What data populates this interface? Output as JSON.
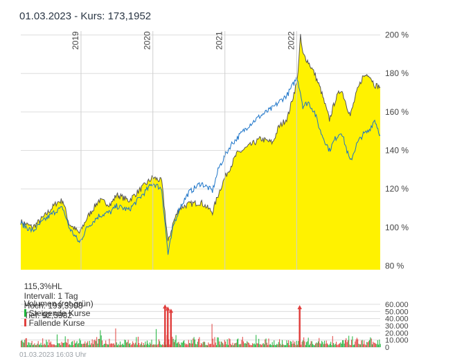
{
  "header": {
    "date": "01.03.2023",
    "price_text": " - Kurs: 173,1952"
  },
  "info": {
    "level": "115,3%HL",
    "interval": "Intervall: 1 Tag",
    "high": "Hoch: 199,3908",
    "low": "Tief: 92,5982"
  },
  "legend": {
    "title": "Volumen (rot-grün)",
    "rising": "Steigende Kurse",
    "falling": "Fallende Kurse",
    "rising_color": "#1db33b",
    "falling_color": "#e0403e"
  },
  "footer": {
    "timestamp": "01.03.2023 16:03 Uhr"
  },
  "colors": {
    "area": "#fff200",
    "area_line": "#555555",
    "benchmark": "#1a73c8",
    "grid": "#dddddd",
    "accent_text": "#2a3644"
  },
  "chart_data": [
    {
      "type": "area",
      "x_tick_labels": [
        "2019",
        "2020",
        "2021",
        "2022"
      ],
      "y_tick_labels": [
        "200 %",
        "180 %",
        "160 %",
        "140 %",
        "120 %",
        "100 %",
        "80 %"
      ],
      "ylim": [
        78,
        202
      ],
      "xlim": [
        "2018-03-01",
        "2023-03-01"
      ],
      "grid": true,
      "series": [
        {
          "x": [
            "2018-03-01",
            "2018-05-01",
            "2018-07-01",
            "2018-09-01",
            "2018-10-01",
            "2018-11-01",
            "2018-12-24",
            "2019-02-01",
            "2019-04-01",
            "2019-06-01",
            "2019-07-01",
            "2019-09-01",
            "2019-11-01",
            "2020-01-01",
            "2020-02-15",
            "2020-03-18",
            "2020-04-15",
            "2020-05-15",
            "2020-07-01",
            "2020-09-01",
            "2020-10-30",
            "2020-12-01",
            "2021-01-01",
            "2021-02-01",
            "2021-03-01",
            "2021-05-01",
            "2021-07-01",
            "2021-09-01",
            "2021-10-01",
            "2021-11-15",
            "2022-01-03",
            "2022-01-20",
            "2022-02-01",
            "2022-03-01",
            "2022-04-01",
            "2022-05-01",
            "2022-06-16",
            "2022-07-15",
            "2022-08-15",
            "2022-09-30",
            "2022-11-01",
            "2022-12-01",
            "2023-01-01",
            "2023-02-01",
            "2023-03-01"
          ],
          "values": [
            103,
            100,
            106,
            113,
            114,
            102,
            97,
            105,
            114,
            112,
            117,
            114,
            120,
            126,
            124,
            92,
            103,
            110,
            112,
            113,
            108,
            118,
            126,
            132,
            138,
            142,
            146,
            144,
            152,
            157,
            176,
            199,
            190,
            186,
            180,
            172,
            156,
            166,
            172,
            158,
            170,
            178,
            180,
            174,
            173
          ]
        },
        {
          "x": [
            "2018-03-01",
            "2018-05-01",
            "2018-07-01",
            "2018-09-01",
            "2018-10-01",
            "2018-11-01",
            "2018-12-24",
            "2019-02-01",
            "2019-04-01",
            "2019-06-01",
            "2019-07-01",
            "2019-09-01",
            "2019-11-01",
            "2020-01-01",
            "2020-02-15",
            "2020-03-18",
            "2020-04-15",
            "2020-05-15",
            "2020-07-01",
            "2020-09-01",
            "2020-10-30",
            "2020-12-01",
            "2021-01-01",
            "2021-02-01",
            "2021-03-01",
            "2021-05-01",
            "2021-07-01",
            "2021-09-01",
            "2021-10-01",
            "2021-11-15",
            "2022-01-03",
            "2022-01-20",
            "2022-02-01",
            "2022-03-01",
            "2022-04-01",
            "2022-05-01",
            "2022-06-16",
            "2022-07-15",
            "2022-08-15",
            "2022-09-30",
            "2022-11-01",
            "2022-12-01",
            "2023-01-01",
            "2023-02-01",
            "2023-03-01"
          ],
          "values": [
            102,
            98,
            104,
            109,
            110,
            100,
            92,
            100,
            106,
            108,
            111,
            109,
            116,
            123,
            120,
            86,
            101,
            110,
            118,
            123,
            119,
            131,
            137,
            143,
            146,
            153,
            158,
            162,
            165,
            169,
            178,
            170,
            163,
            165,
            160,
            150,
            140,
            146,
            150,
            134,
            143,
            148,
            150,
            156,
            148
          ]
        }
      ]
    },
    {
      "type": "bar",
      "y_tick_labels": [
        "60.000",
        "50.000",
        "40.000",
        "30.000",
        "20.000",
        "10.000",
        "0"
      ],
      "ylim": [
        0,
        60000
      ],
      "spikes": [
        {
          "x": "2020-03-02",
          "value": 58000
        },
        {
          "x": "2020-03-16",
          "value": 55000
        },
        {
          "x": "2020-04-01",
          "value": 52000
        },
        {
          "x": "2022-01-15",
          "value": 57000
        }
      ],
      "typical_volume": 9000
    }
  ]
}
